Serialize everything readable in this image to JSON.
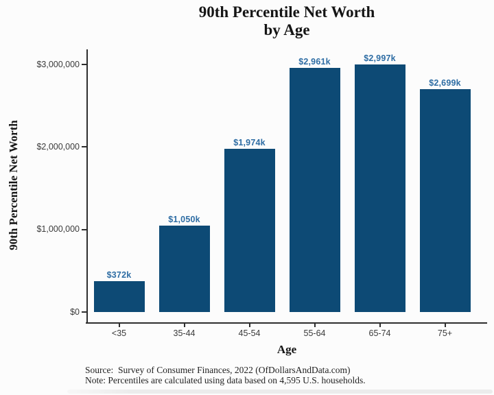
{
  "title": {
    "line1": "90th Percentile Net Worth",
    "line2": "by Age"
  },
  "chart_data": {
    "type": "bar",
    "title": "90th Percentile Net Worth by Age",
    "xlabel": "Age",
    "ylabel": "90th Percentile Net Worth",
    "categories": [
      "<35",
      "35-44",
      "45-54",
      "55-64",
      "65-74",
      "75+"
    ],
    "values": [
      372000,
      1050000,
      1974000,
      2961000,
      2997000,
      2699000
    ],
    "bar_labels": [
      "$372k",
      "$1,050k",
      "$1,974k",
      "$2,961k",
      "$2,997k",
      "$2,699k"
    ],
    "ylim": [
      0,
      3160000
    ],
    "yticks": {
      "values": [
        0,
        1000000,
        2000000,
        3000000
      ],
      "labels": [
        "$0",
        "$1,000,000",
        "$2,000,000",
        "$3,000,000"
      ]
    },
    "grid": false,
    "legend": "none",
    "bar_color": "#0d4a75",
    "value_label_color": "#2e6da4",
    "axis_color": "#2d2d2d"
  },
  "footer": {
    "source": "Source:  Survey of Consumer Finances, 2022 (OfDollarsAndData.com)",
    "note": "Note: Percentiles are calculated using data based on 4,595 U.S. households."
  }
}
